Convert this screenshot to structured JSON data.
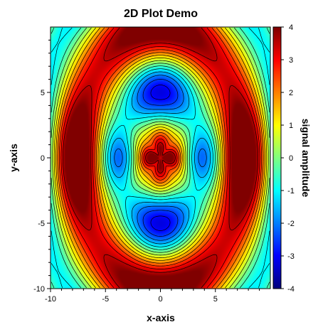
{
  "chart_data": {
    "type": "heatmap",
    "title": "2D Plot Demo",
    "xlabel": "x-axis",
    "ylabel": "y-axis",
    "colorbar_label": "signal amplitude",
    "xlim": [
      -10,
      10
    ],
    "ylim": [
      -10,
      10
    ],
    "zlim": [
      -4,
      4
    ],
    "x_ticks": [
      -10,
      -5,
      0,
      5
    ],
    "y_ticks": [
      -10,
      -5,
      0,
      5
    ],
    "colorbar_ticks": [
      -4,
      -3,
      -2,
      -1,
      0,
      1,
      2,
      3,
      4
    ],
    "colormap": "jet",
    "contours": true,
    "grid": false,
    "legend": "colorbar-right"
  },
  "colors": {
    "background": "#ffffff",
    "contour": "#000000",
    "axis": "#000000"
  }
}
